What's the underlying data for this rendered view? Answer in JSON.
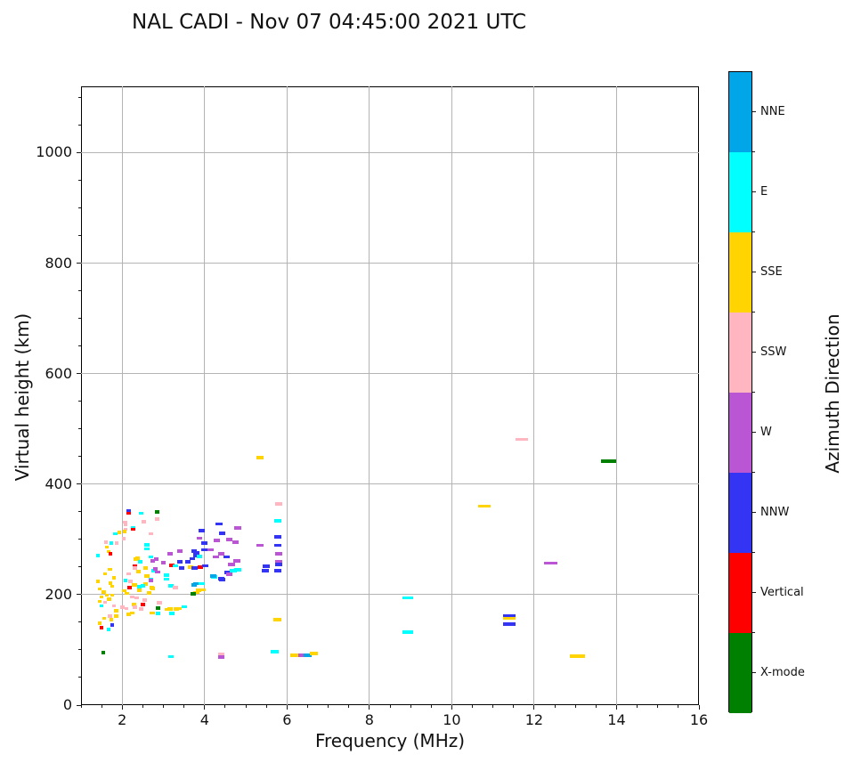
{
  "title": "NAL CADI - Nov 07 04:45:00 2021 UTC",
  "chart_data": {
    "type": "scatter",
    "title": "NAL CADI - Nov 07 04:45:00 2021 UTC",
    "xlabel": "Frequency (MHz)",
    "ylabel": "Virtual height (km)",
    "xlim": [
      1,
      16
    ],
    "ylim": [
      0,
      1120
    ],
    "x_major_ticks": [
      2,
      4,
      6,
      8,
      10,
      12,
      14,
      16
    ],
    "x_minor_step": 0.5,
    "y_major_ticks": [
      0,
      200,
      400,
      600,
      800,
      1000
    ],
    "y_minor_step": 50,
    "grid": true,
    "legend_position": "right-colorbar",
    "colorbar": {
      "label": "Azimuth Direction",
      "categories_top_to_bottom": [
        {
          "label": "NNE",
          "color": "#00A6E8"
        },
        {
          "label": "E",
          "color": "#00FFFF"
        },
        {
          "label": "SSE",
          "color": "#FFD400"
        },
        {
          "label": "SSW",
          "color": "#FFB6C1"
        },
        {
          "label": "W",
          "color": "#BA55D3"
        },
        {
          "label": "NNW",
          "color": "#3434F4"
        },
        {
          "label": "Vertical",
          "color": "#FF0000"
        },
        {
          "label": "X-mode",
          "color": "#008000"
        }
      ]
    },
    "point_format": [
      "frequency_MHz",
      "virtual_height_km",
      "azimuth_category"
    ],
    "points": [
      [
        2.16,
        351,
        "NNW"
      ],
      [
        2.16,
        347,
        "Vertical"
      ],
      [
        2.46,
        347,
        "E"
      ],
      [
        2.85,
        350,
        "X-mode"
      ],
      [
        2.85,
        337,
        "SSW"
      ],
      [
        2.07,
        331,
        "SSW"
      ],
      [
        2.52,
        332,
        "SSW"
      ],
      [
        2.08,
        327,
        "SSW"
      ],
      [
        2.26,
        321,
        "E"
      ],
      [
        2.08,
        318,
        "SSW"
      ],
      [
        2.26,
        318,
        "Vertical"
      ],
      [
        2.06,
        314,
        "SSE"
      ],
      [
        1.83,
        310,
        "E"
      ],
      [
        2.7,
        310,
        "SSW"
      ],
      [
        2.04,
        301,
        "SSW"
      ],
      [
        1.6,
        295,
        "SSW"
      ],
      [
        1.73,
        293,
        "E"
      ],
      [
        1.86,
        293,
        "SSW"
      ],
      [
        1.62,
        286,
        "SSE"
      ],
      [
        1.67,
        278,
        "SSE"
      ],
      [
        1.72,
        274,
        "Vertical"
      ],
      [
        1.4,
        271,
        "E"
      ],
      [
        2.6,
        290,
        "E"
      ],
      [
        2.6,
        283,
        "E"
      ],
      [
        1.93,
        313,
        "SSE"
      ],
      [
        3.87,
        302,
        "W"
      ],
      [
        3.93,
        316,
        "NNW"
      ],
      [
        3.4,
        279,
        "W"
      ],
      [
        3.16,
        274,
        "W"
      ],
      [
        3.8,
        276,
        "NNW"
      ],
      [
        3.8,
        270,
        "NNW"
      ],
      [
        3.74,
        279,
        "NNW"
      ],
      [
        4.0,
        293,
        "NNW"
      ],
      [
        4.0,
        281,
        "NNW"
      ],
      [
        3.4,
        259,
        "NNW"
      ],
      [
        3.6,
        259,
        "NNW"
      ],
      [
        3.0,
        258,
        "W"
      ],
      [
        3.2,
        253,
        "Vertical"
      ],
      [
        3.3,
        252,
        "E"
      ],
      [
        3.45,
        248,
        "NNW"
      ],
      [
        3.66,
        250,
        "SSE"
      ],
      [
        3.9,
        250,
        "Vertical"
      ],
      [
        4.02,
        252,
        "NNW"
      ],
      [
        3.76,
        248,
        "NNW"
      ],
      [
        4.35,
        328,
        "NNW"
      ],
      [
        4.43,
        311,
        "NNW"
      ],
      [
        4.8,
        321,
        "W"
      ],
      [
        4.3,
        298,
        "W"
      ],
      [
        4.6,
        300,
        "W"
      ],
      [
        4.75,
        295,
        "W"
      ],
      [
        4.15,
        281,
        "W"
      ],
      [
        4.28,
        268,
        "W"
      ],
      [
        4.4,
        274,
        "W"
      ],
      [
        4.78,
        261,
        "W"
      ],
      [
        4.65,
        255,
        "W"
      ],
      [
        4.53,
        268,
        "NNW"
      ],
      [
        3.87,
        269,
        "E"
      ],
      [
        3.7,
        265,
        "NNW"
      ],
      [
        4.8,
        245,
        "E"
      ],
      [
        4.24,
        232,
        "E"
      ],
      [
        4.43,
        227,
        "NNW"
      ],
      [
        4.57,
        239,
        "W"
      ],
      [
        4.2,
        234,
        "NNE"
      ],
      [
        4.4,
        229,
        "NNW"
      ],
      [
        4.55,
        240,
        "NNW"
      ],
      [
        4.7,
        243,
        "E"
      ],
      [
        4.6,
        237,
        "W"
      ],
      [
        5.8,
        364,
        "SSW"
      ],
      [
        5.78,
        334,
        "E"
      ],
      [
        5.78,
        305,
        "NNW"
      ],
      [
        5.78,
        289,
        "NNW"
      ],
      [
        5.8,
        274,
        "W"
      ],
      [
        5.8,
        260,
        "W"
      ],
      [
        5.8,
        255,
        "NNW"
      ],
      [
        5.78,
        243,
        "NNW"
      ],
      [
        5.5,
        251,
        "NNW"
      ],
      [
        5.48,
        243,
        "NNW"
      ],
      [
        5.35,
        289,
        "W"
      ],
      [
        5.35,
        448,
        "SSE"
      ],
      [
        5.77,
        155,
        "SSE"
      ],
      [
        2.33,
        264,
        "SSE"
      ],
      [
        2.74,
        261,
        "W"
      ],
      [
        2.83,
        264,
        "W"
      ],
      [
        2.43,
        259,
        "E"
      ],
      [
        2.3,
        251,
        "Vertical"
      ],
      [
        2.56,
        248,
        "SSE"
      ],
      [
        2.76,
        243,
        "E"
      ],
      [
        2.37,
        266,
        "SSE"
      ],
      [
        2.7,
        268,
        "E"
      ],
      [
        2.8,
        247,
        "W"
      ],
      [
        2.86,
        241,
        "W"
      ],
      [
        2.3,
        248,
        "SSW"
      ],
      [
        2.4,
        242,
        "SSE"
      ],
      [
        2.6,
        234,
        "SSE"
      ],
      [
        2.7,
        227,
        "E"
      ],
      [
        1.7,
        246,
        "SSE"
      ],
      [
        1.59,
        238,
        "SSE"
      ],
      [
        2.15,
        238,
        "SSW"
      ],
      [
        1.8,
        230,
        "SSE"
      ],
      [
        1.42,
        224,
        "SSE"
      ],
      [
        1.72,
        221,
        "SSE"
      ],
      [
        1.75,
        215,
        "SSE"
      ],
      [
        2.08,
        226,
        "E"
      ],
      [
        2.2,
        224,
        "SSW"
      ],
      [
        2.28,
        218,
        "SSE"
      ],
      [
        2.41,
        214,
        "E"
      ],
      [
        2.57,
        219,
        "SSE"
      ],
      [
        2.7,
        226,
        "W"
      ],
      [
        2.72,
        213,
        "SSE"
      ],
      [
        2.17,
        213,
        "Vertical"
      ],
      [
        2.3,
        218,
        "SSE"
      ],
      [
        2.5,
        216,
        "E"
      ],
      [
        3.08,
        235,
        "E"
      ],
      [
        3.08,
        228,
        "E"
      ],
      [
        3.18,
        216,
        "E"
      ],
      [
        3.3,
        213,
        "SSW"
      ],
      [
        2.74,
        211,
        "SSE"
      ],
      [
        3.8,
        220,
        "NNE"
      ],
      [
        3.93,
        220,
        "E"
      ],
      [
        3.85,
        208,
        "SSE"
      ],
      [
        3.8,
        204,
        "SSE"
      ],
      [
        3.95,
        209,
        "SSE"
      ],
      [
        2.65,
        203,
        "SSE"
      ],
      [
        3.74,
        218,
        "NNE"
      ],
      [
        3.72,
        201,
        "X-mode"
      ],
      [
        1.45,
        210,
        "SSE"
      ],
      [
        1.55,
        205,
        "SSE"
      ],
      [
        1.5,
        196,
        "SSE"
      ],
      [
        1.62,
        199,
        "SSE"
      ],
      [
        1.68,
        192,
        "SSE"
      ],
      [
        1.58,
        186,
        "SSW"
      ],
      [
        1.75,
        199,
        "SSE"
      ],
      [
        1.45,
        188,
        "SSE"
      ],
      [
        1.5,
        180,
        "E"
      ],
      [
        1.8,
        180,
        "SSW"
      ],
      [
        2.05,
        207,
        "SSE"
      ],
      [
        2.12,
        202,
        "SSE"
      ],
      [
        2.42,
        208,
        "SSE"
      ],
      [
        2.25,
        196,
        "SSW"
      ],
      [
        2.36,
        194,
        "SSW"
      ],
      [
        2.54,
        190,
        "SSW"
      ],
      [
        2.5,
        182,
        "Vertical"
      ],
      [
        2.28,
        182,
        "SSE"
      ],
      [
        2.9,
        185,
        "SSW"
      ],
      [
        2.87,
        176,
        "X-mode"
      ],
      [
        2.87,
        166,
        "E"
      ],
      [
        3.1,
        173,
        "SSE"
      ],
      [
        3.37,
        175,
        "SSE"
      ],
      [
        3.5,
        178,
        "E"
      ],
      [
        2.73,
        167,
        "SSE"
      ],
      [
        3.2,
        166,
        "E"
      ],
      [
        2.0,
        177,
        "SSW"
      ],
      [
        2.1,
        175,
        "SSW"
      ],
      [
        2.3,
        177,
        "SSW"
      ],
      [
        2.46,
        174,
        "SSW"
      ],
      [
        1.85,
        171,
        "SSE"
      ],
      [
        1.85,
        161,
        "SSE"
      ],
      [
        2.15,
        164,
        "SSE"
      ],
      [
        2.25,
        167,
        "SSE"
      ],
      [
        3.17,
        174,
        "SSE"
      ],
      [
        3.32,
        174,
        "SSE"
      ],
      [
        1.7,
        161,
        "SSW"
      ],
      [
        1.57,
        157,
        "SSE"
      ],
      [
        1.74,
        155,
        "SSE"
      ],
      [
        1.46,
        148,
        "SSE"
      ],
      [
        1.5,
        140,
        "Vertical"
      ],
      [
        1.67,
        137,
        "E"
      ],
      [
        1.76,
        145,
        "NNW"
      ],
      [
        1.54,
        95,
        "X-mode"
      ],
      [
        3.18,
        88,
        "E"
      ],
      [
        4.4,
        92,
        "SSW"
      ],
      [
        4.4,
        87,
        "W"
      ],
      [
        5.7,
        97,
        "E"
      ],
      [
        6.17,
        90,
        "SSE"
      ],
      [
        6.37,
        90,
        "W"
      ],
      [
        6.5,
        90,
        "NNE"
      ],
      [
        6.65,
        93,
        "SSE"
      ],
      [
        11.7,
        481,
        "SSW"
      ],
      [
        13.8,
        442,
        "X-mode"
      ],
      [
        10.8,
        360,
        "SSE"
      ],
      [
        12.4,
        257,
        "W"
      ],
      [
        11.4,
        162,
        "NNW"
      ],
      [
        11.4,
        157,
        "SSE"
      ],
      [
        11.4,
        147,
        "NNW"
      ],
      [
        13.05,
        89,
        "SSE"
      ],
      [
        8.93,
        194,
        "E"
      ],
      [
        8.93,
        132,
        "E"
      ]
    ]
  }
}
